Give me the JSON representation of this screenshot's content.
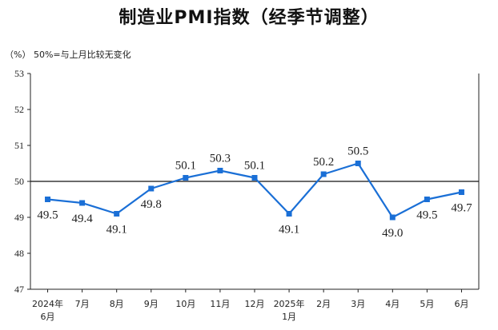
{
  "chart_data": {
    "type": "line",
    "title": "制造业PMI指数（经季节调整）",
    "unit_note": "（%）  50%=与上月比较无变化",
    "categories": [
      [
        "2024年",
        "6月"
      ],
      [
        "7月"
      ],
      [
        "8月"
      ],
      [
        "9月"
      ],
      [
        "10月"
      ],
      [
        "11月"
      ],
      [
        "12月"
      ],
      [
        "2025年",
        "1月"
      ],
      [
        "2月"
      ],
      [
        "3月"
      ],
      [
        "4月"
      ],
      [
        "5月"
      ],
      [
        "6月"
      ]
    ],
    "values": [
      49.5,
      49.4,
      49.1,
      49.8,
      50.1,
      50.3,
      50.1,
      49.1,
      50.2,
      50.5,
      49.0,
      49.5,
      49.7
    ],
    "labels": [
      "49.5",
      "49.4",
      "49.1",
      "49.8",
      "50.1",
      "50.3",
      "50.1",
      "49.1",
      "50.2",
      "50.5",
      "49.0",
      "49.5",
      "49.7"
    ],
    "label_position": [
      "below",
      "below",
      "below",
      "below",
      "above",
      "above",
      "above",
      "below",
      "above",
      "above",
      "below",
      "below",
      "below"
    ],
    "ylim": [
      47,
      53
    ],
    "yticks": [
      "47",
      "48",
      "49",
      "50",
      "51",
      "52",
      "53"
    ],
    "reference_line": 50,
    "series_color": "#1a6fd6"
  }
}
